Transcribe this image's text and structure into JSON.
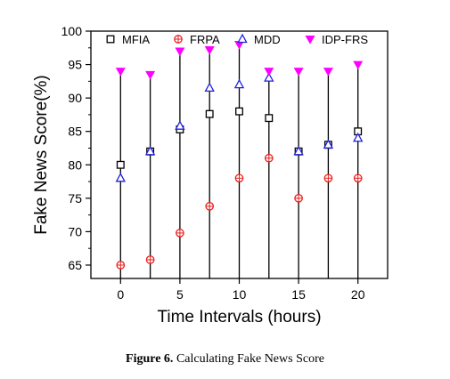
{
  "chart_data": {
    "type": "scatter",
    "xlabel": "Time Intervals (hours)",
    "ylabel": "Fake News Score(%)",
    "xlim": [
      -2.5,
      22.5
    ],
    "ylim": [
      63,
      100
    ],
    "x_ticks": [
      0,
      5,
      10,
      15,
      20
    ],
    "y_ticks": [
      65,
      70,
      75,
      80,
      85,
      90,
      95,
      100
    ],
    "x": [
      0,
      2.5,
      5,
      7.5,
      10,
      12.5,
      15,
      17.5,
      20
    ],
    "legend_position": "top",
    "grid": false,
    "series": [
      {
        "name": "MFIA",
        "marker": "square",
        "color": "#000000",
        "values": [
          80,
          82,
          85.3,
          87.6,
          88,
          87,
          82,
          83,
          85
        ]
      },
      {
        "name": "FRPA",
        "marker": "circle-plus",
        "color": "#e8201f",
        "values": [
          65,
          65.8,
          69.8,
          73.8,
          78,
          81,
          75,
          78,
          78
        ]
      },
      {
        "name": "MDD",
        "marker": "triangle-up",
        "color": "#2020e0",
        "values": [
          78,
          82,
          85.8,
          91.5,
          92,
          93,
          82,
          83,
          84
        ]
      },
      {
        "name": "IDP-FRS",
        "marker": "triangle-down",
        "color": "#ff00ff",
        "values": [
          94,
          93.5,
          97,
          97.2,
          98,
          94,
          94,
          94,
          95
        ]
      }
    ]
  },
  "caption": {
    "label": "Figure 6.",
    "text": " Calculating Fake News Score"
  }
}
